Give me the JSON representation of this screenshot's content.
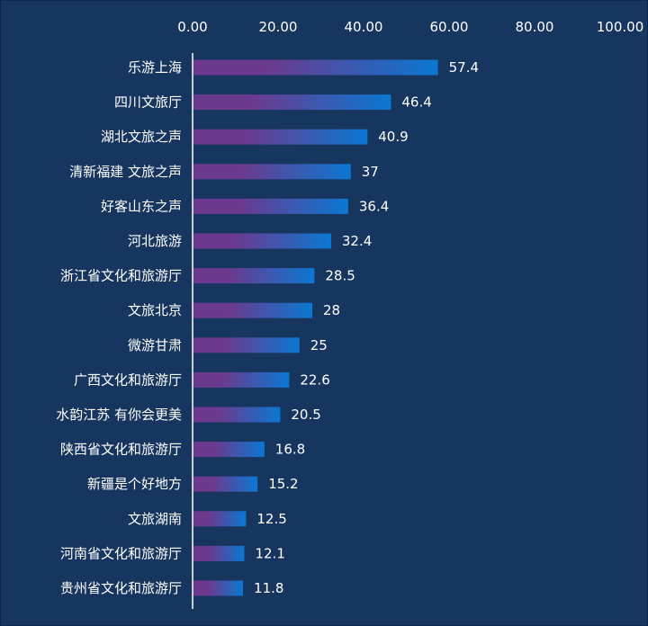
{
  "chart_data": {
    "type": "bar",
    "orientation": "horizontal",
    "title": "",
    "xlabel": "",
    "ylabel": "",
    "xlim": [
      0,
      100
    ],
    "x_ticks": [
      "0.00",
      "20.00",
      "40.00",
      "60.00",
      "80.00",
      "100.00"
    ],
    "x_tick_values": [
      0,
      20,
      40,
      60,
      80,
      100
    ],
    "x_axis_position": "top",
    "grid": false,
    "legend": "none",
    "categories": [
      "乐游上海",
      "四川文旅厅",
      "湖北文旅之声",
      "清新福建 文旅之声",
      "好客山东之声",
      "河北旅游",
      "浙江省文化和旅游厅",
      "文旅北京",
      "微游甘肃",
      "广西文化和旅游厅",
      "水韵江苏 有你会更美",
      "陕西省文化和旅游厅",
      "新疆是个好地方",
      "文旅湖南",
      "河南省文化和旅游厅",
      "贵州省文化和旅游厅"
    ],
    "values": [
      57.4,
      46.4,
      40.9,
      37,
      36.4,
      32.4,
      28.5,
      28,
      25,
      22.6,
      20.5,
      16.8,
      15.2,
      12.5,
      12.1,
      11.8
    ],
    "value_labels": [
      "57.4",
      "46.4",
      "40.9",
      "37",
      "36.4",
      "32.4",
      "28.5",
      "28",
      "25",
      "22.6",
      "20.5",
      "16.8",
      "15.2",
      "12.5",
      "12.1",
      "11.8"
    ]
  },
  "colors": {
    "background": "#17365f",
    "bar_start": "#6b3a8e",
    "bar_end": "#0a78d2",
    "axis": "#ffffff",
    "text": "#ffffff"
  }
}
